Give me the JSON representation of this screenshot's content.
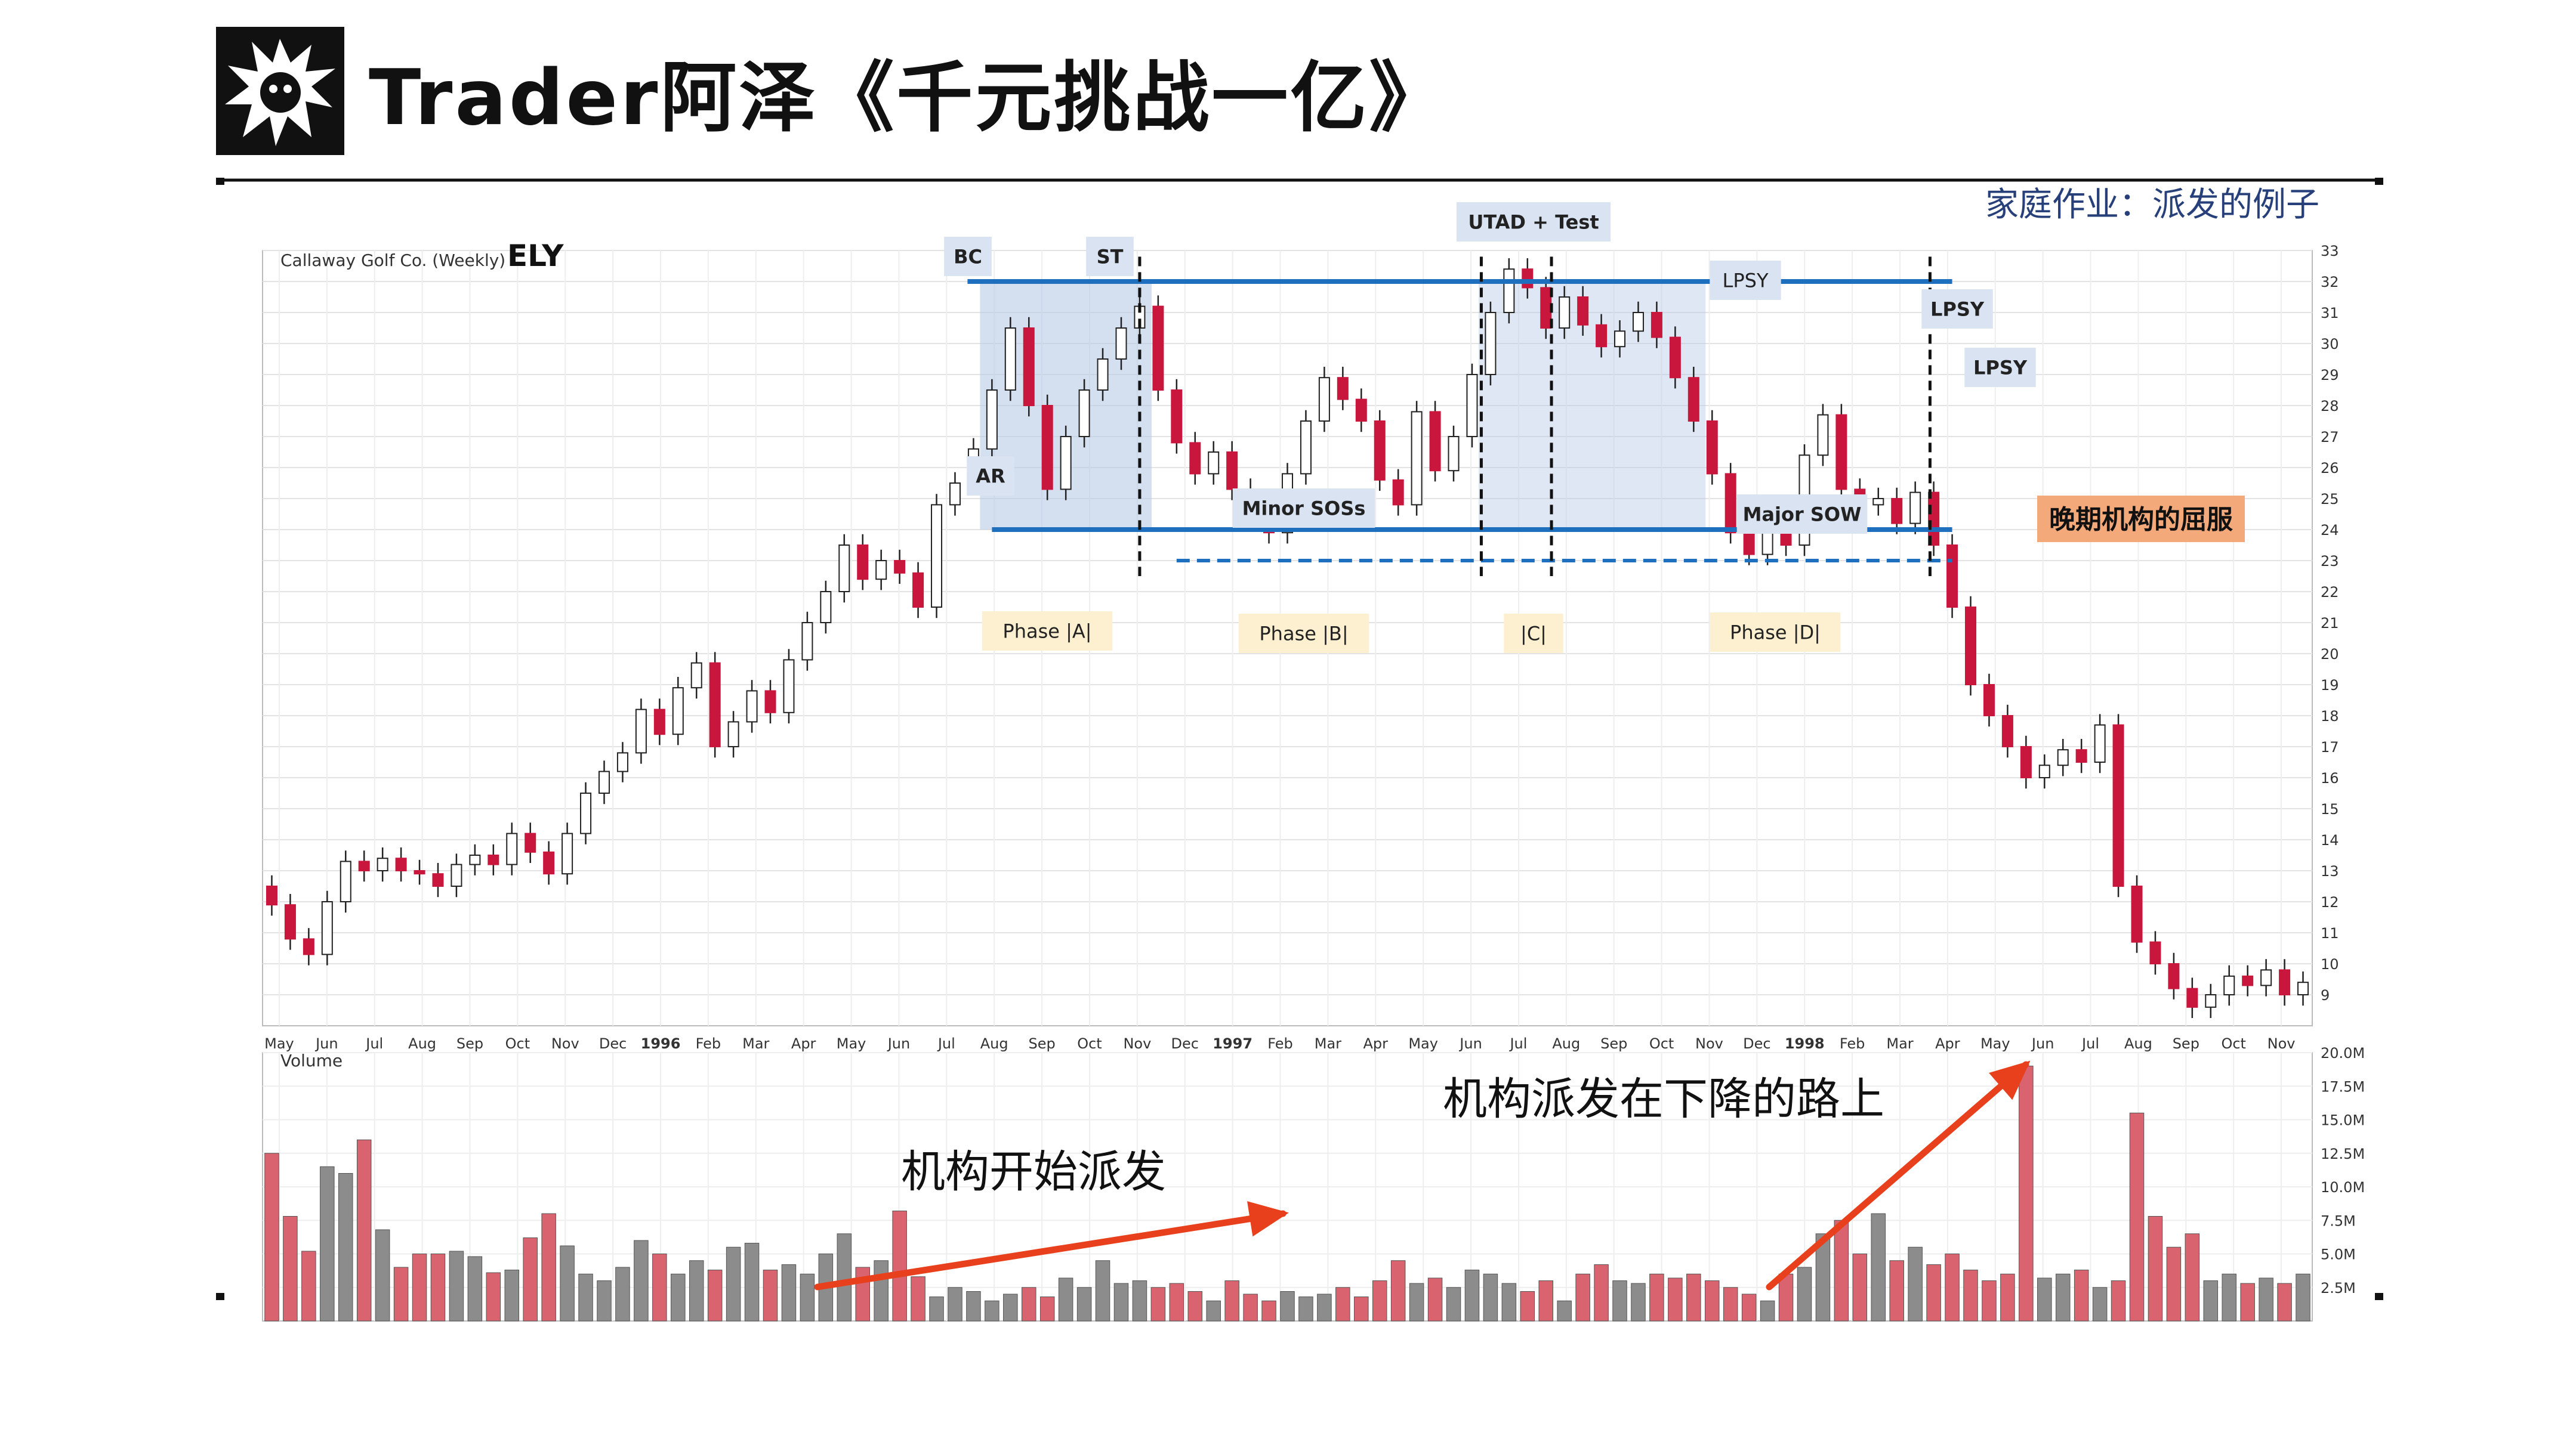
{
  "header": {
    "title": "Trader阿泽《千元挑战一亿》",
    "homework": "家庭作业：派发的例子"
  },
  "colors": {
    "up_candle": "#ffffff",
    "down_candle": "#c8163d",
    "volume_up": "#8c8c8c",
    "volume_down": "#d9636e",
    "range_line": "#1f6fbf",
    "zone_fill": "#b8c9e6",
    "phase_box": "#fdf0d0",
    "label_box": "#d9e3f2",
    "orange_label": "#f4a97a",
    "arrow": "#e8401c"
  },
  "annotations": {
    "bc": "BC",
    "st": "ST",
    "ar": "AR",
    "utad": "UTAD + Test",
    "lpsy1": "LPSY",
    "lpsy2": "LPSY",
    "lpsy3": "LPSY",
    "minor_sos": "Minor SOSs",
    "major_sow": "Major SOW",
    "late_capitulation": "晚期机构的屈服",
    "phase_a": "Phase |A|",
    "phase_b": "Phase |B|",
    "phase_c": "|C|",
    "phase_d": "Phase |D|",
    "distribution_start": "机构开始派发",
    "distribution_down": "机构派发在下降的路上"
  },
  "chart_data": {
    "type": "candlestick",
    "title": "Callaway Golf Co. (Weekly)",
    "ticker": "ELY",
    "price_ylim": [
      8,
      33
    ],
    "price_ticks": [
      9,
      10,
      11,
      12,
      13,
      14,
      15,
      16,
      17,
      18,
      19,
      20,
      21,
      22,
      23,
      24,
      25,
      26,
      27,
      28,
      29,
      30,
      31,
      32,
      33
    ],
    "x_tick_labels": [
      "May",
      "Jun",
      "Jul",
      "Aug",
      "Sep",
      "Oct",
      "Nov",
      "Dec",
      "1996",
      "Feb",
      "Mar",
      "Apr",
      "May",
      "Jun",
      "Jul",
      "Aug",
      "Sep",
      "Oct",
      "Nov",
      "Dec",
      "1997",
      "Feb",
      "Mar",
      "Apr",
      "May",
      "Jun",
      "Jul",
      "Aug",
      "Sep",
      "Oct",
      "Nov",
      "Dec",
      "1998",
      "Feb",
      "Mar",
      "Apr",
      "May",
      "Jun",
      "Jul",
      "Aug",
      "Sep",
      "Oct",
      "Nov"
    ],
    "volume_label": "Volume",
    "volume_ticks": [
      "2.5M",
      "5.0M",
      "7.5M",
      "10.0M",
      "12.5M",
      "15.0M",
      "17.5M",
      "20.0M"
    ],
    "volume_ylim": [
      0,
      20
    ],
    "grid": true,
    "trading_range": {
      "resistance": 32,
      "support": 24,
      "dashed_support": 23
    },
    "price_path": [
      [
        0,
        11.9
      ],
      [
        1,
        10.8
      ],
      [
        2,
        10.3
      ],
      [
        3,
        12.0
      ],
      [
        4,
        13.3
      ],
      [
        5,
        13.0
      ],
      [
        6,
        13.4
      ],
      [
        7,
        13.0
      ],
      [
        8,
        12.9
      ],
      [
        9,
        12.5
      ],
      [
        10,
        13.2
      ],
      [
        11,
        13.5
      ],
      [
        12,
        13.2
      ],
      [
        13,
        14.2
      ],
      [
        14,
        13.6
      ],
      [
        15,
        12.9
      ],
      [
        16,
        14.2
      ],
      [
        17,
        15.5
      ],
      [
        18,
        16.2
      ],
      [
        19,
        16.8
      ],
      [
        20,
        18.2
      ],
      [
        21,
        17.4
      ],
      [
        22,
        18.9
      ],
      [
        23,
        19.7
      ],
      [
        24,
        17.0
      ],
      [
        25,
        17.8
      ],
      [
        26,
        18.8
      ],
      [
        27,
        18.1
      ],
      [
        28,
        19.8
      ],
      [
        29,
        21.0
      ],
      [
        30,
        22.0
      ],
      [
        31,
        23.5
      ],
      [
        32,
        22.4
      ],
      [
        33,
        23.0
      ],
      [
        34,
        22.6
      ],
      [
        35,
        21.5
      ],
      [
        36,
        24.8
      ],
      [
        37,
        25.5
      ],
      [
        38,
        26.6
      ],
      [
        39,
        28.5
      ],
      [
        40,
        30.5
      ],
      [
        41,
        28.0
      ],
      [
        42,
        25.3
      ],
      [
        43,
        27.0
      ],
      [
        44,
        28.5
      ],
      [
        45,
        29.5
      ],
      [
        46,
        30.5
      ],
      [
        47,
        31.2
      ],
      [
        48,
        28.5
      ],
      [
        49,
        26.8
      ],
      [
        50,
        25.8
      ],
      [
        51,
        26.5
      ],
      [
        52,
        25.3
      ],
      [
        53,
        24.5
      ],
      [
        54,
        23.9
      ],
      [
        55,
        25.8
      ],
      [
        56,
        27.5
      ],
      [
        57,
        28.9
      ],
      [
        58,
        28.2
      ],
      [
        59,
        27.5
      ],
      [
        60,
        25.6
      ],
      [
        61,
        24.8
      ],
      [
        62,
        27.8
      ],
      [
        63,
        25.9
      ],
      [
        64,
        27.0
      ],
      [
        65,
        29.0
      ],
      [
        66,
        31.0
      ],
      [
        67,
        32.4
      ],
      [
        68,
        31.8
      ],
      [
        69,
        30.5
      ],
      [
        70,
        31.5
      ],
      [
        71,
        30.6
      ],
      [
        72,
        29.9
      ],
      [
        73,
        30.4
      ],
      [
        74,
        31.0
      ],
      [
        75,
        30.2
      ],
      [
        76,
        28.9
      ],
      [
        77,
        27.5
      ],
      [
        78,
        25.8
      ],
      [
        79,
        23.9
      ],
      [
        80,
        23.2
      ],
      [
        81,
        24.2
      ],
      [
        82,
        23.5
      ],
      [
        83,
        26.4
      ],
      [
        84,
        27.7
      ],
      [
        85,
        25.3
      ],
      [
        86,
        24.8
      ],
      [
        87,
        25.0
      ],
      [
        88,
        24.2
      ],
      [
        89,
        25.2
      ],
      [
        90,
        23.5
      ],
      [
        91,
        21.5
      ],
      [
        92,
        19.0
      ],
      [
        93,
        18.0
      ],
      [
        94,
        17.0
      ],
      [
        95,
        16.0
      ],
      [
        96,
        16.4
      ],
      [
        97,
        16.9
      ],
      [
        98,
        16.5
      ],
      [
        99,
        17.7
      ],
      [
        100,
        12.5
      ],
      [
        101,
        10.7
      ],
      [
        102,
        10.0
      ],
      [
        103,
        9.2
      ],
      [
        104,
        8.6
      ],
      [
        105,
        9.0
      ],
      [
        106,
        9.6
      ],
      [
        107,
        9.3
      ],
      [
        108,
        9.8
      ],
      [
        109,
        9.0
      ],
      [
        110,
        9.4
      ]
    ],
    "volume": [
      12.5,
      7.8,
      5.2,
      11.5,
      11.0,
      13.5,
      6.8,
      4.0,
      5.0,
      5.0,
      5.2,
      4.8,
      3.6,
      3.8,
      6.2,
      8.0,
      5.6,
      3.5,
      3.0,
      4.0,
      6.0,
      5.0,
      3.5,
      4.5,
      3.8,
      5.5,
      5.8,
      3.8,
      4.2,
      3.5,
      5.0,
      6.5,
      4.0,
      4.5,
      8.2,
      3.3,
      1.8,
      2.5,
      2.2,
      1.5,
      2.0,
      2.5,
      1.8,
      3.2,
      2.5,
      4.5,
      2.8,
      3.0,
      2.5,
      2.8,
      2.2,
      1.5,
      3.0,
      2.0,
      1.5,
      2.2,
      1.8,
      2.0,
      2.5,
      1.8,
      3.0,
      4.5,
      2.8,
      3.2,
      2.5,
      3.8,
      3.5,
      2.8,
      2.2,
      3.0,
      1.5,
      3.5,
      4.2,
      3.0,
      2.8,
      3.5,
      3.2,
      3.5,
      3.0,
      2.5,
      2.0,
      1.5,
      3.5,
      4.0,
      6.5,
      7.5,
      5.0,
      8.0,
      4.5,
      5.5,
      4.2,
      5.0,
      3.8,
      3.0,
      3.5,
      19.0,
      3.2,
      3.5,
      3.8,
      2.5,
      3.0,
      15.5,
      7.8,
      5.5,
      6.5,
      3.0,
      3.5,
      2.8,
      3.2,
      2.8,
      3.5
    ]
  }
}
